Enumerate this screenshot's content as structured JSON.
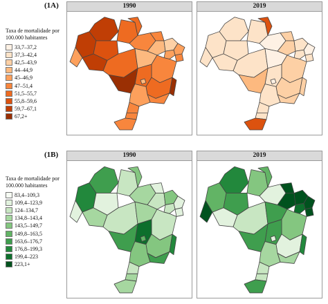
{
  "figure": {
    "panels": [
      {
        "tag": "(1A)",
        "legend_title": "Taxa de mortalidade por 100.000 habitantes",
        "legend_items": [
          {
            "label": "33,7–37,2",
            "color": "#fef1e4"
          },
          {
            "label": "37,3–42,4",
            "color": "#fde3c8"
          },
          {
            "label": "42,5–43,9",
            "color": "#fdd0a5"
          },
          {
            "label": "44–44,9",
            "color": "#fdb97f"
          },
          {
            "label": "45–46,9",
            "color": "#fda05c"
          },
          {
            "label": "47–51,4",
            "color": "#f8863d"
          },
          {
            "label": "51,5–55,7",
            "color": "#ee6b21"
          },
          {
            "label": "55,8–59,6",
            "color": "#dc520f"
          },
          {
            "label": "59,7–67,1",
            "color": "#c03e05"
          },
          {
            "label": "67,2+",
            "color": "#9a2f03"
          }
        ],
        "maps": [
          {
            "year": "1990",
            "region_classes": [
              8,
              6,
              8,
              7,
              6,
              5,
              4,
              8,
              6,
              5,
              3,
              2,
              4,
              4,
              5,
              3,
              5,
              6,
              6,
              9,
              9,
              5,
              4,
              5,
              5,
              5,
              3
            ]
          },
          {
            "year": "2019",
            "region_classes": [
              1,
              1,
              1,
              1,
              7,
              0,
              1,
              1,
              1,
              2,
              2,
              1,
              0,
              1,
              1,
              0,
              2,
              1,
              2,
              2,
              3,
              2,
              1,
              1,
              1,
              7,
              0
            ]
          }
        ]
      },
      {
        "tag": "(1B)",
        "legend_title": "Taxa de mortalidade por 100.000 habitantes",
        "legend_items": [
          {
            "label": "83,4–109,3",
            "color": "#f6fbf3"
          },
          {
            "label": "109,4–123,9",
            "color": "#e2f2de"
          },
          {
            "label": "124–134,7",
            "color": "#c8e6c2"
          },
          {
            "label": "134,8–143,4",
            "color": "#a6d7a0"
          },
          {
            "label": "143,5–149,7",
            "color": "#84c680"
          },
          {
            "label": "149,8–163,5",
            "color": "#62b465"
          },
          {
            "label": "163,6–176,7",
            "color": "#3f9e4e"
          },
          {
            "label": "176,8–199,3",
            "color": "#22883c"
          },
          {
            "label": "199,4–223",
            "color": "#0d6f2c"
          },
          {
            "label": "223,1+",
            "color": "#00521e"
          }
        ],
        "maps": [
          {
            "year": "1990",
            "region_classes": [
              6,
              2,
              7,
              1,
              4,
              3,
              1,
              3,
              2,
              1,
              2,
              4,
              1,
              2,
              1,
              3,
              2,
              8,
              4,
              7,
              6,
              6,
              4,
              2,
              3,
              3,
              5
            ]
          },
          {
            "year": "2019",
            "region_classes": [
              7,
              4,
              5,
              6,
              5,
              1,
              9,
              1,
              2,
              9,
              9,
              9,
              9,
              8,
              9,
              6,
              4,
              6,
              1,
              7,
              6,
              3,
              3,
              2,
              2,
              6,
              1
            ]
          }
        ]
      }
    ]
  }
}
